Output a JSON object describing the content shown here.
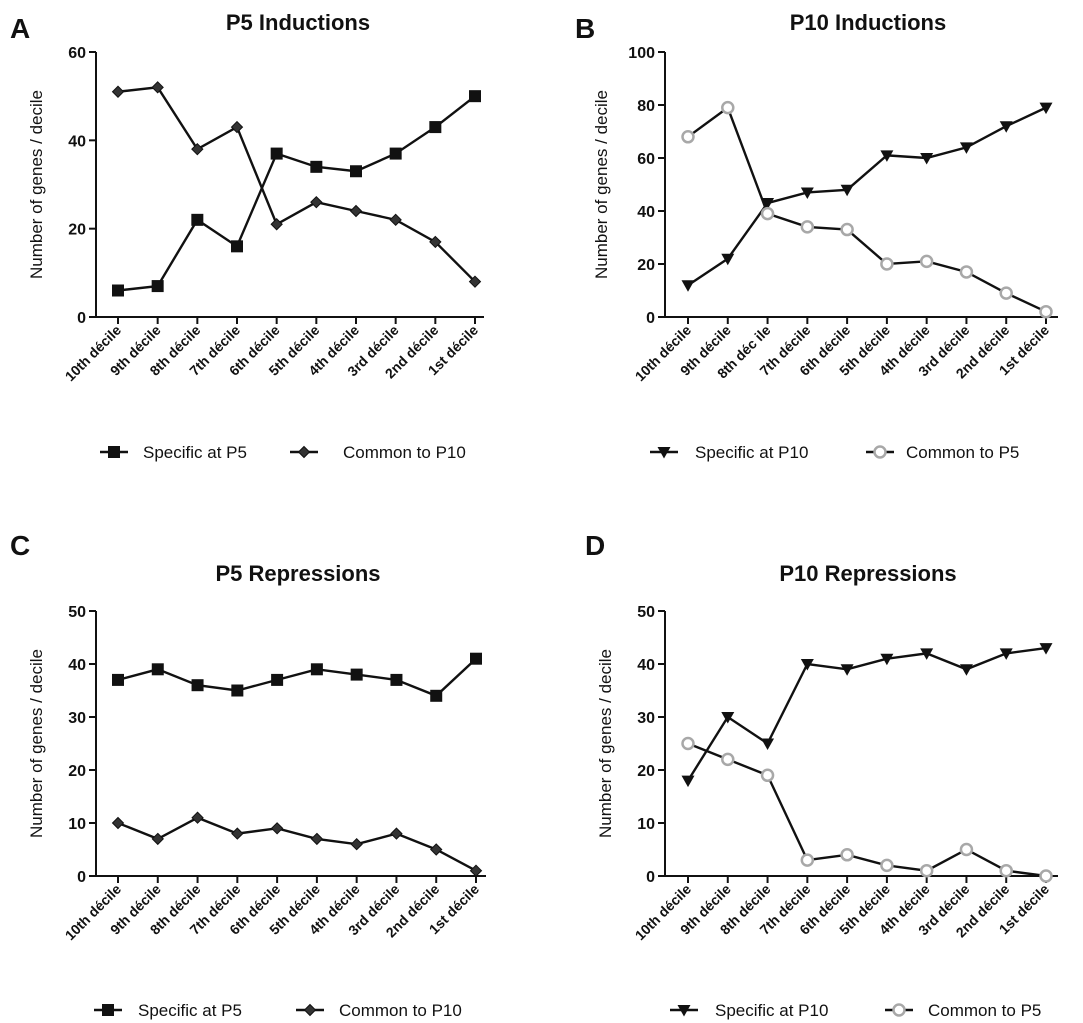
{
  "chart_data": [
    {
      "type": "line",
      "panel_label": "A",
      "title": "P5 Inductions",
      "ylabel": "Number  of  genes  /  decile",
      "categories": [
        "10th décile",
        "9th décile",
        "8th décile",
        "7th décile",
        "6th décile",
        "5th décile",
        "4th décile",
        "3rd décile",
        "2nd décile",
        "1st décile"
      ],
      "ylim": [
        0,
        60
      ],
      "yticks": [
        0,
        20,
        40,
        60
      ],
      "legend_position": "bottom",
      "series": [
        {
          "name": "Specific at P5",
          "marker": "square",
          "values": [
            6,
            7,
            22,
            16,
            37,
            34,
            33,
            37,
            43,
            50
          ]
        },
        {
          "name": "Common to P10",
          "marker": "diamond",
          "values": [
            51,
            52,
            38,
            43,
            21,
            26,
            24,
            22,
            17,
            8
          ]
        }
      ]
    },
    {
      "type": "line",
      "panel_label": "B",
      "title": "P10 Inductions",
      "ylabel": "Number  of  genes  /  decile",
      "categories": [
        "10th décile",
        "9th décile",
        "8th déc   ile",
        "7th décile",
        "6th décile",
        "5th décile",
        "4th décile",
        "3rd décile",
        "2nd décile",
        "1st décile"
      ],
      "ylim": [
        0,
        100
      ],
      "yticks": [
        0,
        20,
        40,
        60,
        80,
        100
      ],
      "legend_position": "bottom",
      "series": [
        {
          "name": "Specific at P10",
          "marker": "triangle-down",
          "values": [
            12,
            22,
            43,
            47,
            48,
            61,
            60,
            64,
            72,
            79
          ]
        },
        {
          "name": "Common to P5",
          "marker": "open-circle",
          "values": [
            68,
            79,
            39,
            34,
            33,
            20,
            21,
            17,
            9,
            2
          ]
        }
      ]
    },
    {
      "type": "line",
      "panel_label": "C",
      "title": "P5 Repressions",
      "ylabel": "Number  of  genes  /  decile",
      "categories": [
        "10th décile",
        "9th décile",
        "8th décile",
        "7th décile",
        "6th décile",
        "5th décile",
        "4th décile",
        "3rd décile",
        "2nd décile",
        "1st décile"
      ],
      "ylim": [
        0,
        50
      ],
      "yticks": [
        0,
        10,
        20,
        30,
        40,
        50
      ],
      "legend_position": "bottom",
      "series": [
        {
          "name": "Specific at P5",
          "marker": "square",
          "values": [
            37,
            39,
            36,
            35,
            37,
            39,
            38,
            37,
            34,
            41
          ]
        },
        {
          "name": "Common to P10",
          "marker": "diamond",
          "values": [
            10,
            7,
            11,
            8,
            9,
            7,
            6,
            8,
            5,
            1
          ]
        }
      ]
    },
    {
      "type": "line",
      "panel_label": "D",
      "title": "P10 Repressions",
      "ylabel": "Number  of  genes  /  decile",
      "categories": [
        "10th décile",
        "9th décile",
        "8th décile",
        "7th décile",
        "6th décile",
        "5th décile",
        "4th décile",
        "3rd décile",
        "2nd décile",
        "1st décile"
      ],
      "ylim": [
        0,
        50
      ],
      "yticks": [
        0,
        10,
        20,
        30,
        40,
        50
      ],
      "legend_position": "bottom",
      "series": [
        {
          "name": "Specific at P10",
          "marker": "triangle-down",
          "values": [
            18,
            30,
            25,
            40,
            39,
            41,
            42,
            39,
            42,
            43
          ]
        },
        {
          "name": "Common to P5",
          "marker": "open-circle",
          "values": [
            25,
            22,
            19,
            3,
            4,
            2,
            1,
            5,
            1,
            0
          ]
        }
      ]
    }
  ]
}
